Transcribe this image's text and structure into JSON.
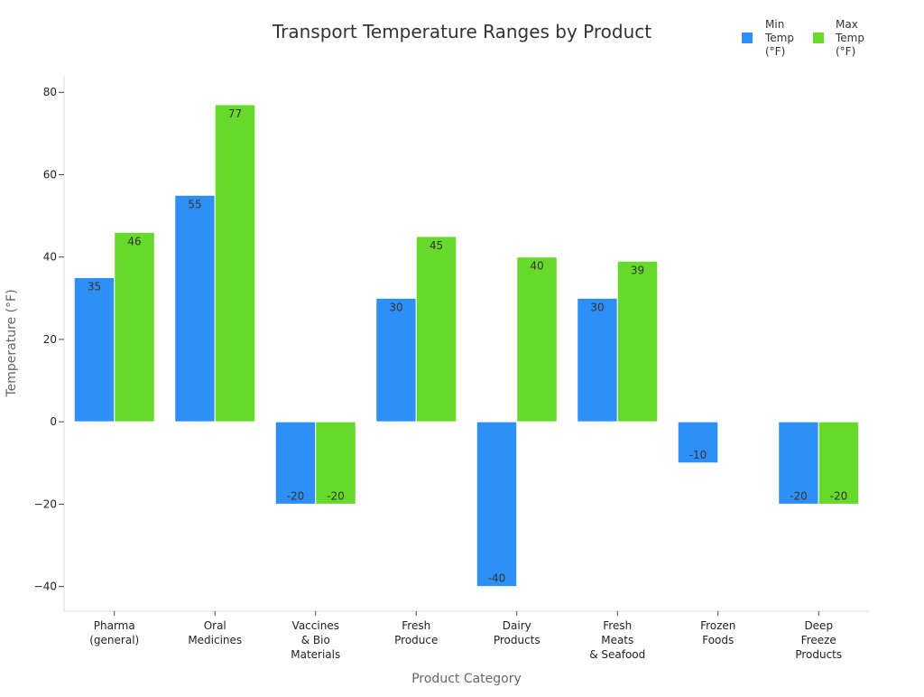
{
  "chart_data": {
    "type": "bar",
    "title": "Transport Temperature Ranges by Product",
    "xlabel": "Product Category",
    "ylabel": "Temperature (°F)",
    "ylim": [
      -46,
      84
    ],
    "yticks": [
      -40,
      -20,
      0,
      20,
      40,
      60,
      80
    ],
    "ytick_labels": [
      "−40",
      "−20",
      "0",
      "20",
      "40",
      "60",
      "80"
    ],
    "categories": [
      [
        "Pharma",
        "(general)"
      ],
      [
        "Oral",
        "Medicines"
      ],
      [
        "Vaccines",
        "& Bio",
        "Materials"
      ],
      [
        "Fresh",
        "Produce"
      ],
      [
        "Dairy",
        "Products"
      ],
      [
        "Fresh",
        "Meats",
        "& Seafood"
      ],
      [
        "Frozen",
        "Foods"
      ],
      [
        "Deep",
        "Freeze",
        "Products"
      ]
    ],
    "series": [
      {
        "name": [
          "Min",
          "Temp",
          "(°F)"
        ],
        "color": "#2e90f7",
        "values": [
          35,
          55,
          -20,
          30,
          -40,
          30,
          -10,
          -20
        ]
      },
      {
        "name": [
          "Max",
          "Temp",
          "(°F)"
        ],
        "color": "#66d92a",
        "values": [
          46,
          77,
          -20,
          45,
          40,
          39,
          null,
          -20
        ]
      }
    ],
    "legend_position": "top-right",
    "grid": false
  }
}
